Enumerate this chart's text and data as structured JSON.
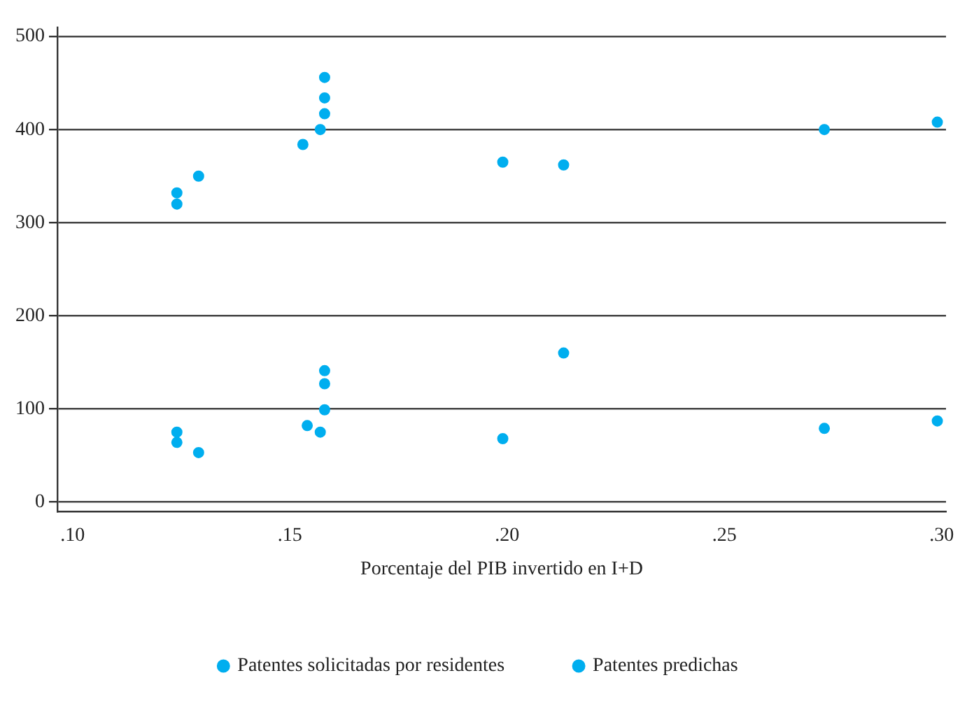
{
  "chart_data": {
    "type": "scatter",
    "xlabel": "Porcentaje del PIB invertido en I+D",
    "xlim": [
      0.0965,
      0.301
    ],
    "xticks": [
      {
        "value": 0.1,
        "label": ".10"
      },
      {
        "value": 0.15,
        "label": ".15"
      },
      {
        "value": 0.2,
        "label": ".20"
      },
      {
        "value": 0.25,
        "label": ".25"
      },
      {
        "value": 0.3,
        "label": ".30"
      }
    ],
    "ylim": [
      -10,
      510
    ],
    "yticks": [
      0,
      100,
      200,
      300,
      400,
      500
    ],
    "grid": "y",
    "legend": "bottom",
    "marker": "circle",
    "series": [
      {
        "name": "Patentes solicitadas por residentes",
        "color": "#00aeef",
        "x": [
          0.124,
          0.124,
          0.129,
          0.154,
          0.157,
          0.158,
          0.158,
          0.158,
          0.199,
          0.213,
          0.273,
          0.299
        ],
        "values": [
          75,
          64,
          53,
          82,
          75,
          99,
          127,
          141,
          68,
          160,
          79,
          87
        ]
      },
      {
        "name": "Patentes predichas",
        "color": "#00aeef",
        "x": [
          0.124,
          0.124,
          0.129,
          0.153,
          0.157,
          0.158,
          0.158,
          0.158,
          0.199,
          0.213,
          0.273,
          0.299
        ],
        "values": [
          332,
          320,
          350,
          384,
          400,
          417,
          434,
          456,
          365,
          362,
          400,
          408
        ]
      }
    ]
  }
}
